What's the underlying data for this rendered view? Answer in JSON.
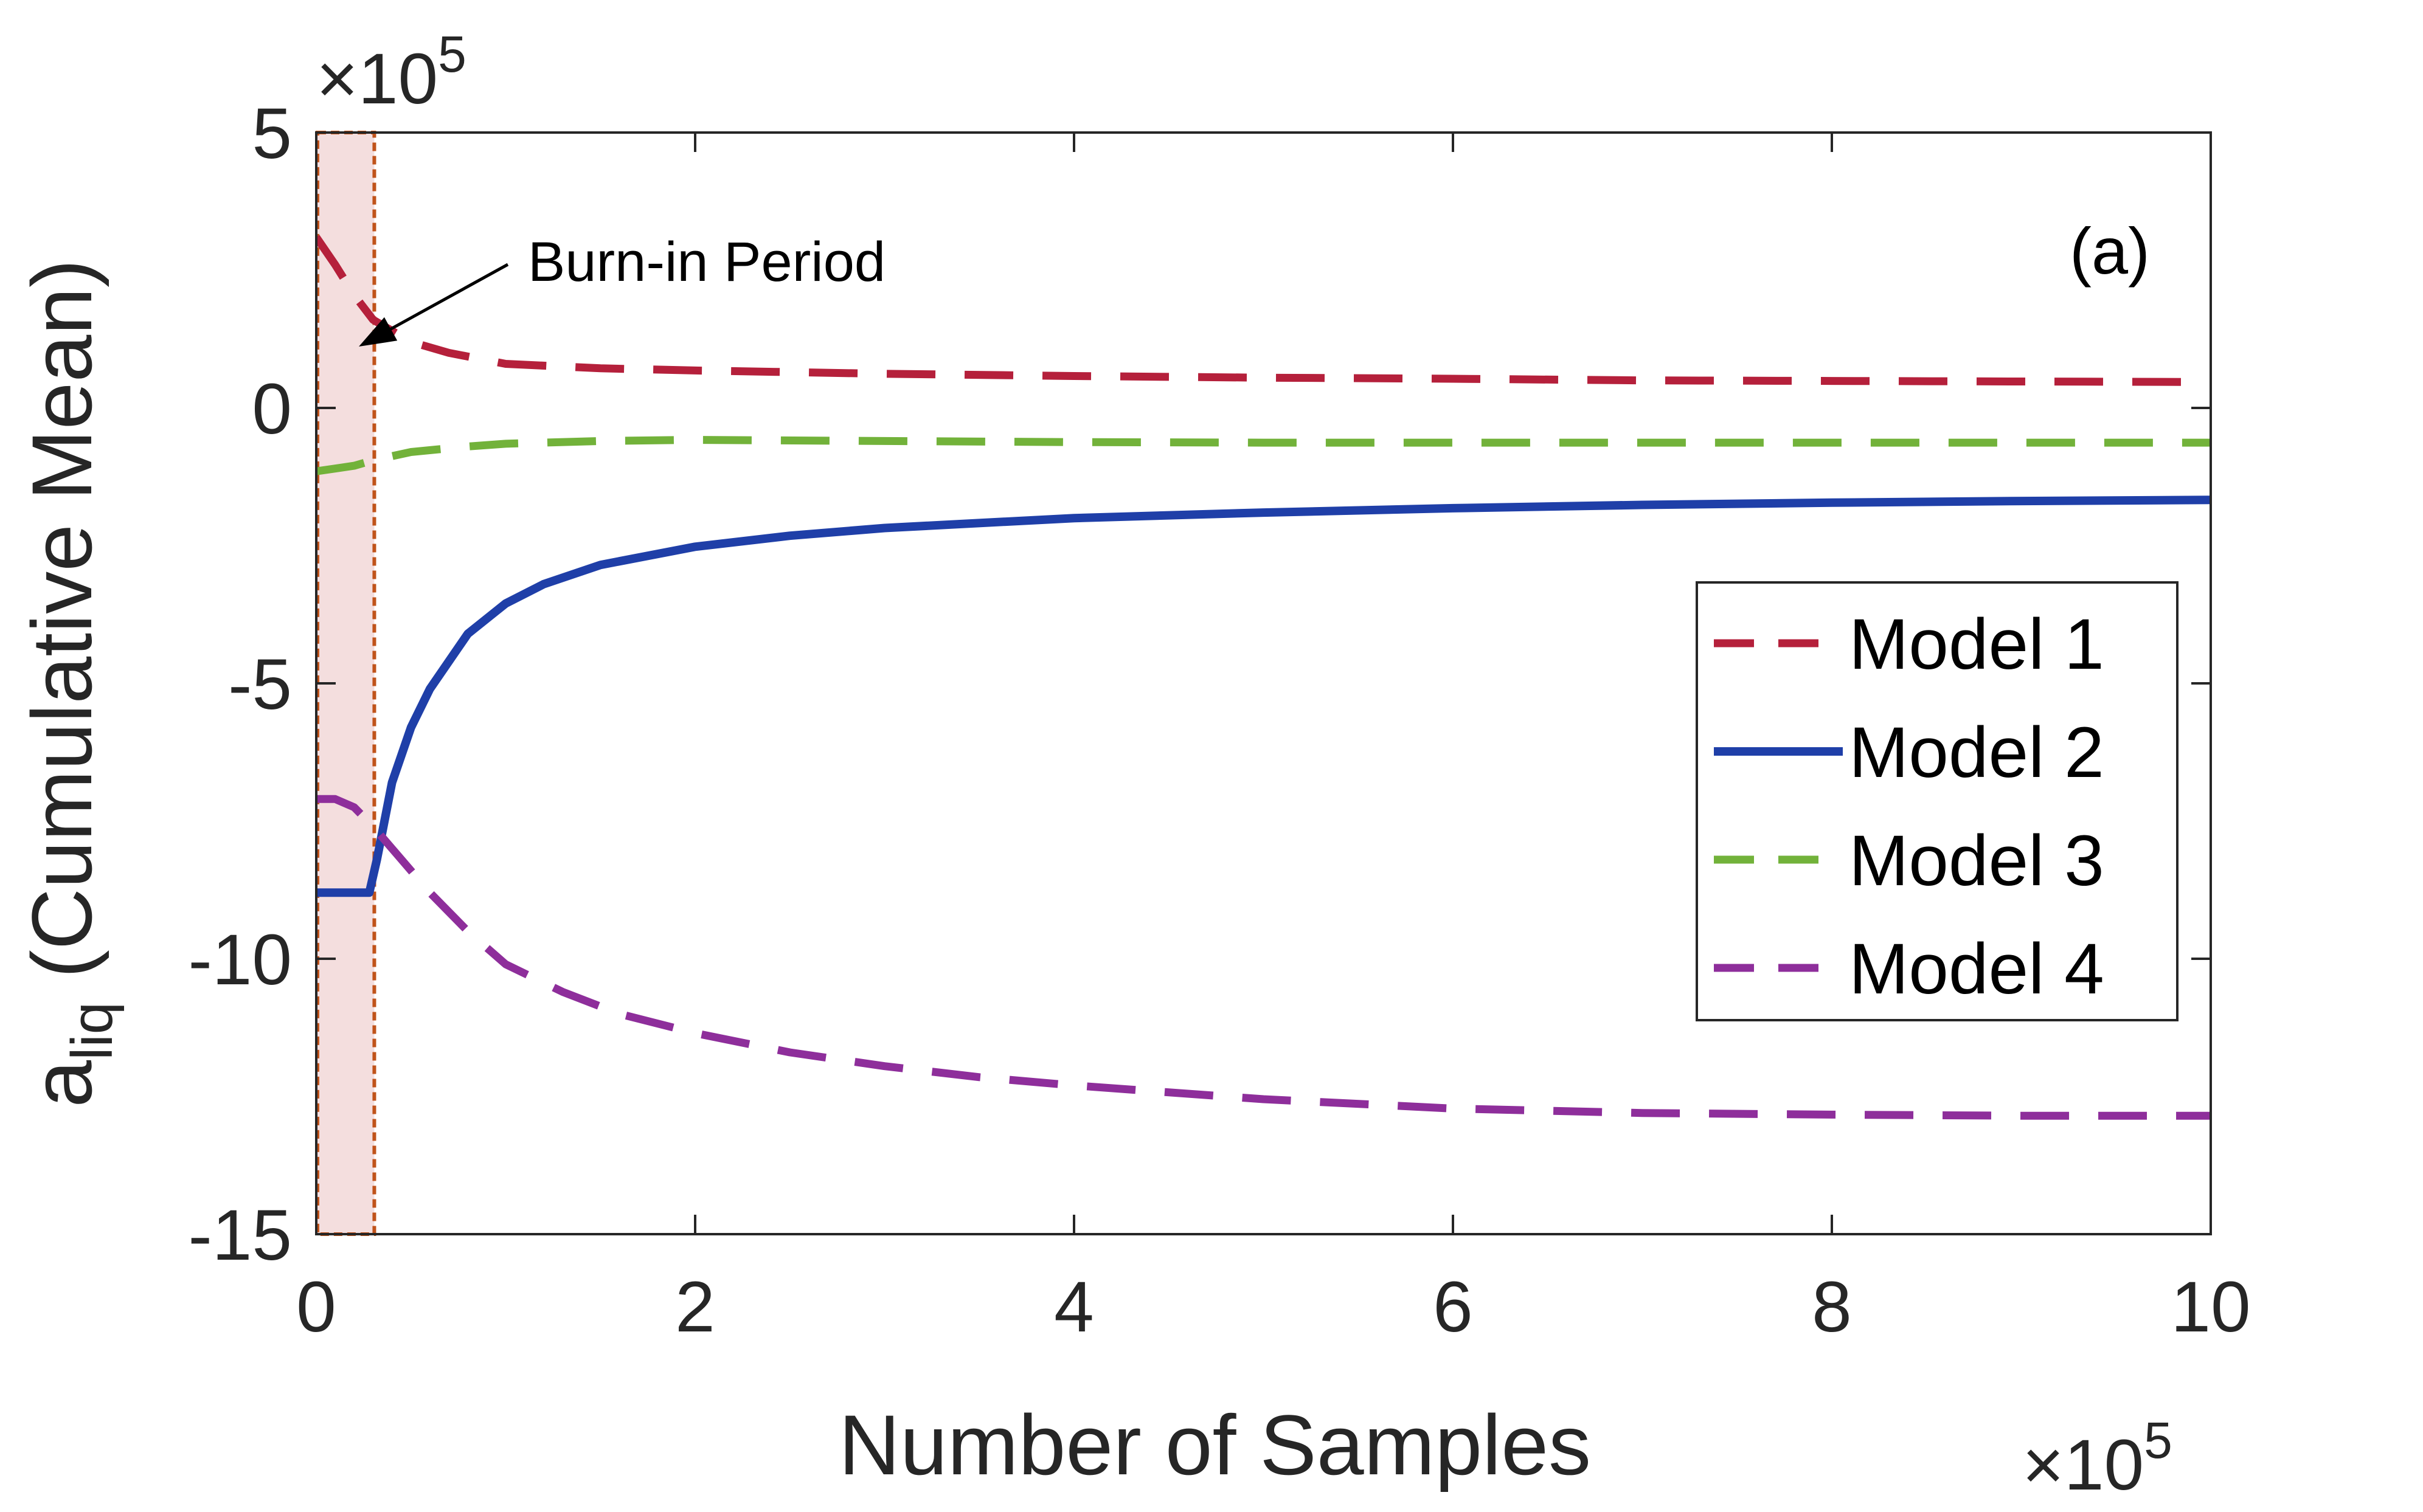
{
  "chart_data": {
    "type": "line",
    "title": "",
    "panel_label": "(a)",
    "xlabel": "Number of Samples",
    "ylabel_main": "a",
    "ylabel_sub": "liq",
    "ylabel_rest": " (Cumulative Mean)",
    "x_exponent_base": "×10",
    "x_exponent_power": "5",
    "y_exponent_base": "×10",
    "y_exponent_power": "5",
    "xlim": [
      0,
      10
    ],
    "ylim": [
      -15,
      5
    ],
    "xticks": [
      0,
      2,
      4,
      6,
      8,
      10
    ],
    "xtick_labels": [
      "0",
      "2",
      "4",
      "6",
      "8",
      "10"
    ],
    "yticks": [
      -15,
      -10,
      -5,
      0,
      5
    ],
    "ytick_labels": [
      "-15",
      "-10",
      "-5",
      "0",
      "5"
    ],
    "grid": false,
    "legend_position": "center-right",
    "burn_in": {
      "label": "Burn-in Period",
      "x_range": [
        0,
        0.3
      ],
      "fill_color": "#f4dede",
      "edge_color": "#c0531a"
    },
    "series": [
      {
        "name": "Model 1",
        "color": "#b5203b",
        "style": "dashed",
        "x": [
          0,
          0.1,
          0.2,
          0.3,
          0.5,
          0.7,
          1.0,
          1.5,
          2.0,
          3.0,
          4.0,
          5.0,
          6.0,
          7.0,
          8.0,
          9.0,
          10.0
        ],
        "y": [
          3.1,
          2.6,
          2.05,
          1.6,
          1.2,
          1.0,
          0.8,
          0.72,
          0.68,
          0.62,
          0.58,
          0.55,
          0.53,
          0.5,
          0.49,
          0.48,
          0.47
        ]
      },
      {
        "name": "Model 2",
        "color": "#1f3fa8",
        "style": "solid",
        "x": [
          0,
          0.1,
          0.2,
          0.28,
          0.32,
          0.4,
          0.5,
          0.6,
          0.8,
          1.0,
          1.2,
          1.5,
          2.0,
          2.5,
          3.0,
          4.0,
          5.0,
          6.0,
          7.0,
          8.0,
          9.0,
          10.0
        ],
        "y": [
          -8.8,
          -8.8,
          -8.8,
          -8.8,
          -8.2,
          -6.8,
          -5.8,
          -5.1,
          -4.1,
          -3.55,
          -3.2,
          -2.85,
          -2.52,
          -2.32,
          -2.18,
          -2.0,
          -1.9,
          -1.82,
          -1.76,
          -1.72,
          -1.69,
          -1.67
        ]
      },
      {
        "name": "Model 3",
        "color": "#72b23a",
        "style": "dashed",
        "x": [
          0,
          0.1,
          0.2,
          0.3,
          0.5,
          0.8,
          1.0,
          1.5,
          2.0,
          3.0,
          4.0,
          5.0,
          6.0,
          7.0,
          8.0,
          9.0,
          10.0
        ],
        "y": [
          -1.15,
          -1.1,
          -1.05,
          -0.95,
          -0.8,
          -0.7,
          -0.65,
          -0.6,
          -0.58,
          -0.6,
          -0.62,
          -0.63,
          -0.63,
          -0.63,
          -0.63,
          -0.63,
          -0.63
        ]
      },
      {
        "name": "Model 4",
        "color": "#8e2e9b",
        "style": "dashed",
        "x": [
          0,
          0.1,
          0.2,
          0.3,
          0.4,
          0.6,
          0.8,
          1.0,
          1.3,
          1.6,
          2.0,
          2.5,
          3.0,
          3.5,
          4.0,
          5.0,
          6.0,
          7.0,
          8.0,
          9.0,
          10.0
        ],
        "y": [
          -7.1,
          -7.1,
          -7.25,
          -7.6,
          -8.0,
          -8.8,
          -9.5,
          -10.1,
          -10.6,
          -11.0,
          -11.35,
          -11.7,
          -11.95,
          -12.15,
          -12.3,
          -12.55,
          -12.72,
          -12.8,
          -12.83,
          -12.85,
          -12.85
        ]
      }
    ]
  }
}
